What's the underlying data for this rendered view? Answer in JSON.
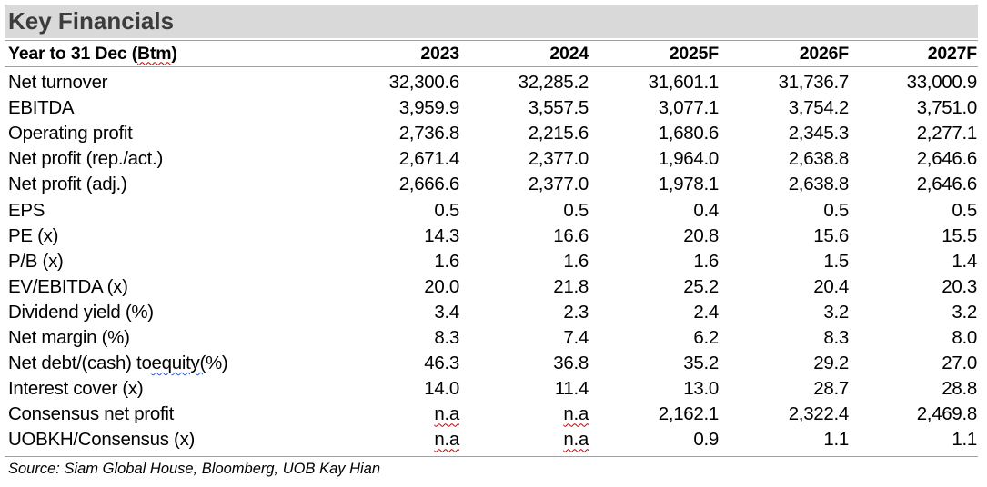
{
  "title": "Key Financials",
  "header": {
    "label": "Year to 31 Dec (Btm)",
    "label_pre": "Year to 31 Dec (",
    "label_mark": "Btm",
    "label_post": ")",
    "years": [
      "2023",
      "2024",
      "2025F",
      "2026F",
      "2027F"
    ]
  },
  "rows": [
    {
      "label": "Net turnover",
      "values": [
        "32,300.6",
        "32,285.2",
        "31,601.1",
        "31,736.7",
        "33,000.9"
      ]
    },
    {
      "label": "EBITDA",
      "values": [
        "3,959.9",
        "3,557.5",
        "3,077.1",
        "3,754.2",
        "3,751.0"
      ]
    },
    {
      "label": "Operating profit",
      "values": [
        "2,736.8",
        "2,215.6",
        "1,680.6",
        "2,345.3",
        "2,277.1"
      ]
    },
    {
      "label": "Net profit (rep./act.)",
      "values": [
        "2,671.4",
        "2,377.0",
        "1,964.0",
        "2,638.8",
        "2,646.6"
      ]
    },
    {
      "label": "Net profit (adj.)",
      "values": [
        "2,666.6",
        "2,377.0",
        "1,978.1",
        "2,638.8",
        "2,646.6"
      ]
    },
    {
      "label": "EPS",
      "values": [
        "0.5",
        "0.5",
        "0.4",
        "0.5",
        "0.5"
      ]
    },
    {
      "label": "PE (x)",
      "values": [
        "14.3",
        "16.6",
        "20.8",
        "15.6",
        "15.5"
      ]
    },
    {
      "label": "P/B (x)",
      "values": [
        "1.6",
        "1.6",
        "1.6",
        "1.5",
        "1.4"
      ]
    },
    {
      "label": "EV/EBITDA (x)",
      "values": [
        "20.0",
        "21.8",
        "25.2",
        "20.4",
        "20.3"
      ]
    },
    {
      "label": "Dividend yield (%)",
      "values": [
        "3.4",
        "2.3",
        "2.4",
        "3.2",
        "3.2"
      ]
    },
    {
      "label": "Net margin (%)",
      "values": [
        "8.3",
        "7.4",
        "6.2",
        "8.3",
        "8.0"
      ]
    },
    {
      "label": "Net debt/(cash) to equity(%)",
      "label_pre": "Net debt/(cash) to ",
      "label_mark": "equity(",
      "label_post": "%)",
      "values": [
        "46.3",
        "36.8",
        "35.2",
        "29.2",
        "27.0"
      ]
    },
    {
      "label": "Interest cover (x)",
      "values": [
        "14.0",
        "11.4",
        "13.0",
        "28.7",
        "28.8"
      ]
    },
    {
      "label": "Consensus net profit",
      "values": [
        "n.a",
        "n.a",
        "2,162.1",
        "2,322.4",
        "2,469.8"
      ]
    },
    {
      "label": "UOBKH/Consensus (x)",
      "values": [
        "n.a",
        "n.a",
        "0.9",
        "1.1",
        "1.1"
      ]
    }
  ],
  "source": "Source: Siam Global House, Bloomberg, UOB Kay Hian"
}
